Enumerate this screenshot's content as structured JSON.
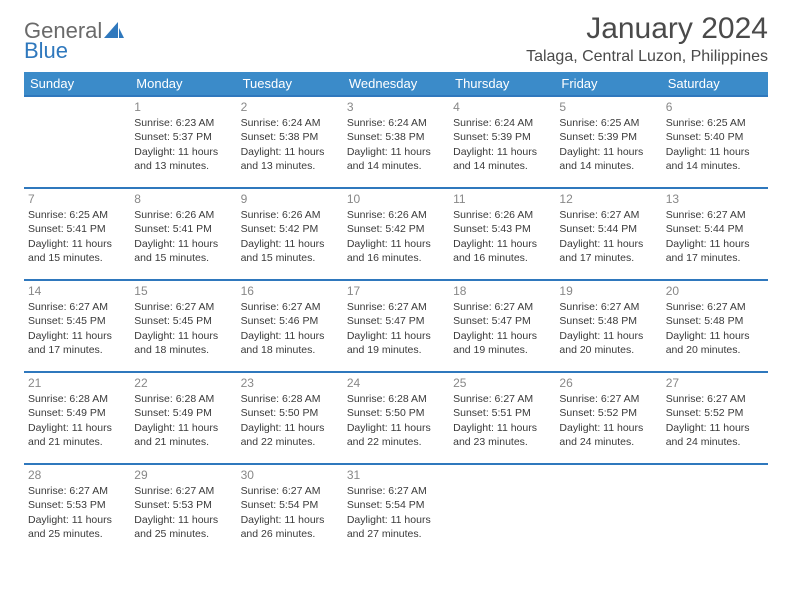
{
  "logo": {
    "word1": "General",
    "word2": "Blue"
  },
  "title": "January 2024",
  "location": "Talaga, Central Luzon, Philippines",
  "header_bg": "#3b8bc9",
  "header_fg": "#ffffff",
  "border_color": "#2f78bd",
  "daynum_color": "#888888",
  "text_color": "#3a3a3a",
  "day_headers": [
    "Sunday",
    "Monday",
    "Tuesday",
    "Wednesday",
    "Thursday",
    "Friday",
    "Saturday"
  ],
  "weeks": [
    [
      null,
      {
        "n": "1",
        "sr": "Sunrise: 6:23 AM",
        "ss": "Sunset: 5:37 PM",
        "dl": "Daylight: 11 hours and 13 minutes."
      },
      {
        "n": "2",
        "sr": "Sunrise: 6:24 AM",
        "ss": "Sunset: 5:38 PM",
        "dl": "Daylight: 11 hours and 13 minutes."
      },
      {
        "n": "3",
        "sr": "Sunrise: 6:24 AM",
        "ss": "Sunset: 5:38 PM",
        "dl": "Daylight: 11 hours and 14 minutes."
      },
      {
        "n": "4",
        "sr": "Sunrise: 6:24 AM",
        "ss": "Sunset: 5:39 PM",
        "dl": "Daylight: 11 hours and 14 minutes."
      },
      {
        "n": "5",
        "sr": "Sunrise: 6:25 AM",
        "ss": "Sunset: 5:39 PM",
        "dl": "Daylight: 11 hours and 14 minutes."
      },
      {
        "n": "6",
        "sr": "Sunrise: 6:25 AM",
        "ss": "Sunset: 5:40 PM",
        "dl": "Daylight: 11 hours and 14 minutes."
      }
    ],
    [
      {
        "n": "7",
        "sr": "Sunrise: 6:25 AM",
        "ss": "Sunset: 5:41 PM",
        "dl": "Daylight: 11 hours and 15 minutes."
      },
      {
        "n": "8",
        "sr": "Sunrise: 6:26 AM",
        "ss": "Sunset: 5:41 PM",
        "dl": "Daylight: 11 hours and 15 minutes."
      },
      {
        "n": "9",
        "sr": "Sunrise: 6:26 AM",
        "ss": "Sunset: 5:42 PM",
        "dl": "Daylight: 11 hours and 15 minutes."
      },
      {
        "n": "10",
        "sr": "Sunrise: 6:26 AM",
        "ss": "Sunset: 5:42 PM",
        "dl": "Daylight: 11 hours and 16 minutes."
      },
      {
        "n": "11",
        "sr": "Sunrise: 6:26 AM",
        "ss": "Sunset: 5:43 PM",
        "dl": "Daylight: 11 hours and 16 minutes."
      },
      {
        "n": "12",
        "sr": "Sunrise: 6:27 AM",
        "ss": "Sunset: 5:44 PM",
        "dl": "Daylight: 11 hours and 17 minutes."
      },
      {
        "n": "13",
        "sr": "Sunrise: 6:27 AM",
        "ss": "Sunset: 5:44 PM",
        "dl": "Daylight: 11 hours and 17 minutes."
      }
    ],
    [
      {
        "n": "14",
        "sr": "Sunrise: 6:27 AM",
        "ss": "Sunset: 5:45 PM",
        "dl": "Daylight: 11 hours and 17 minutes."
      },
      {
        "n": "15",
        "sr": "Sunrise: 6:27 AM",
        "ss": "Sunset: 5:45 PM",
        "dl": "Daylight: 11 hours and 18 minutes."
      },
      {
        "n": "16",
        "sr": "Sunrise: 6:27 AM",
        "ss": "Sunset: 5:46 PM",
        "dl": "Daylight: 11 hours and 18 minutes."
      },
      {
        "n": "17",
        "sr": "Sunrise: 6:27 AM",
        "ss": "Sunset: 5:47 PM",
        "dl": "Daylight: 11 hours and 19 minutes."
      },
      {
        "n": "18",
        "sr": "Sunrise: 6:27 AM",
        "ss": "Sunset: 5:47 PM",
        "dl": "Daylight: 11 hours and 19 minutes."
      },
      {
        "n": "19",
        "sr": "Sunrise: 6:27 AM",
        "ss": "Sunset: 5:48 PM",
        "dl": "Daylight: 11 hours and 20 minutes."
      },
      {
        "n": "20",
        "sr": "Sunrise: 6:27 AM",
        "ss": "Sunset: 5:48 PM",
        "dl": "Daylight: 11 hours and 20 minutes."
      }
    ],
    [
      {
        "n": "21",
        "sr": "Sunrise: 6:28 AM",
        "ss": "Sunset: 5:49 PM",
        "dl": "Daylight: 11 hours and 21 minutes."
      },
      {
        "n": "22",
        "sr": "Sunrise: 6:28 AM",
        "ss": "Sunset: 5:49 PM",
        "dl": "Daylight: 11 hours and 21 minutes."
      },
      {
        "n": "23",
        "sr": "Sunrise: 6:28 AM",
        "ss": "Sunset: 5:50 PM",
        "dl": "Daylight: 11 hours and 22 minutes."
      },
      {
        "n": "24",
        "sr": "Sunrise: 6:28 AM",
        "ss": "Sunset: 5:50 PM",
        "dl": "Daylight: 11 hours and 22 minutes."
      },
      {
        "n": "25",
        "sr": "Sunrise: 6:27 AM",
        "ss": "Sunset: 5:51 PM",
        "dl": "Daylight: 11 hours and 23 minutes."
      },
      {
        "n": "26",
        "sr": "Sunrise: 6:27 AM",
        "ss": "Sunset: 5:52 PM",
        "dl": "Daylight: 11 hours and 24 minutes."
      },
      {
        "n": "27",
        "sr": "Sunrise: 6:27 AM",
        "ss": "Sunset: 5:52 PM",
        "dl": "Daylight: 11 hours and 24 minutes."
      }
    ],
    [
      {
        "n": "28",
        "sr": "Sunrise: 6:27 AM",
        "ss": "Sunset: 5:53 PM",
        "dl": "Daylight: 11 hours and 25 minutes."
      },
      {
        "n": "29",
        "sr": "Sunrise: 6:27 AM",
        "ss": "Sunset: 5:53 PM",
        "dl": "Daylight: 11 hours and 25 minutes."
      },
      {
        "n": "30",
        "sr": "Sunrise: 6:27 AM",
        "ss": "Sunset: 5:54 PM",
        "dl": "Daylight: 11 hours and 26 minutes."
      },
      {
        "n": "31",
        "sr": "Sunrise: 6:27 AM",
        "ss": "Sunset: 5:54 PM",
        "dl": "Daylight: 11 hours and 27 minutes."
      },
      null,
      null,
      null
    ]
  ]
}
